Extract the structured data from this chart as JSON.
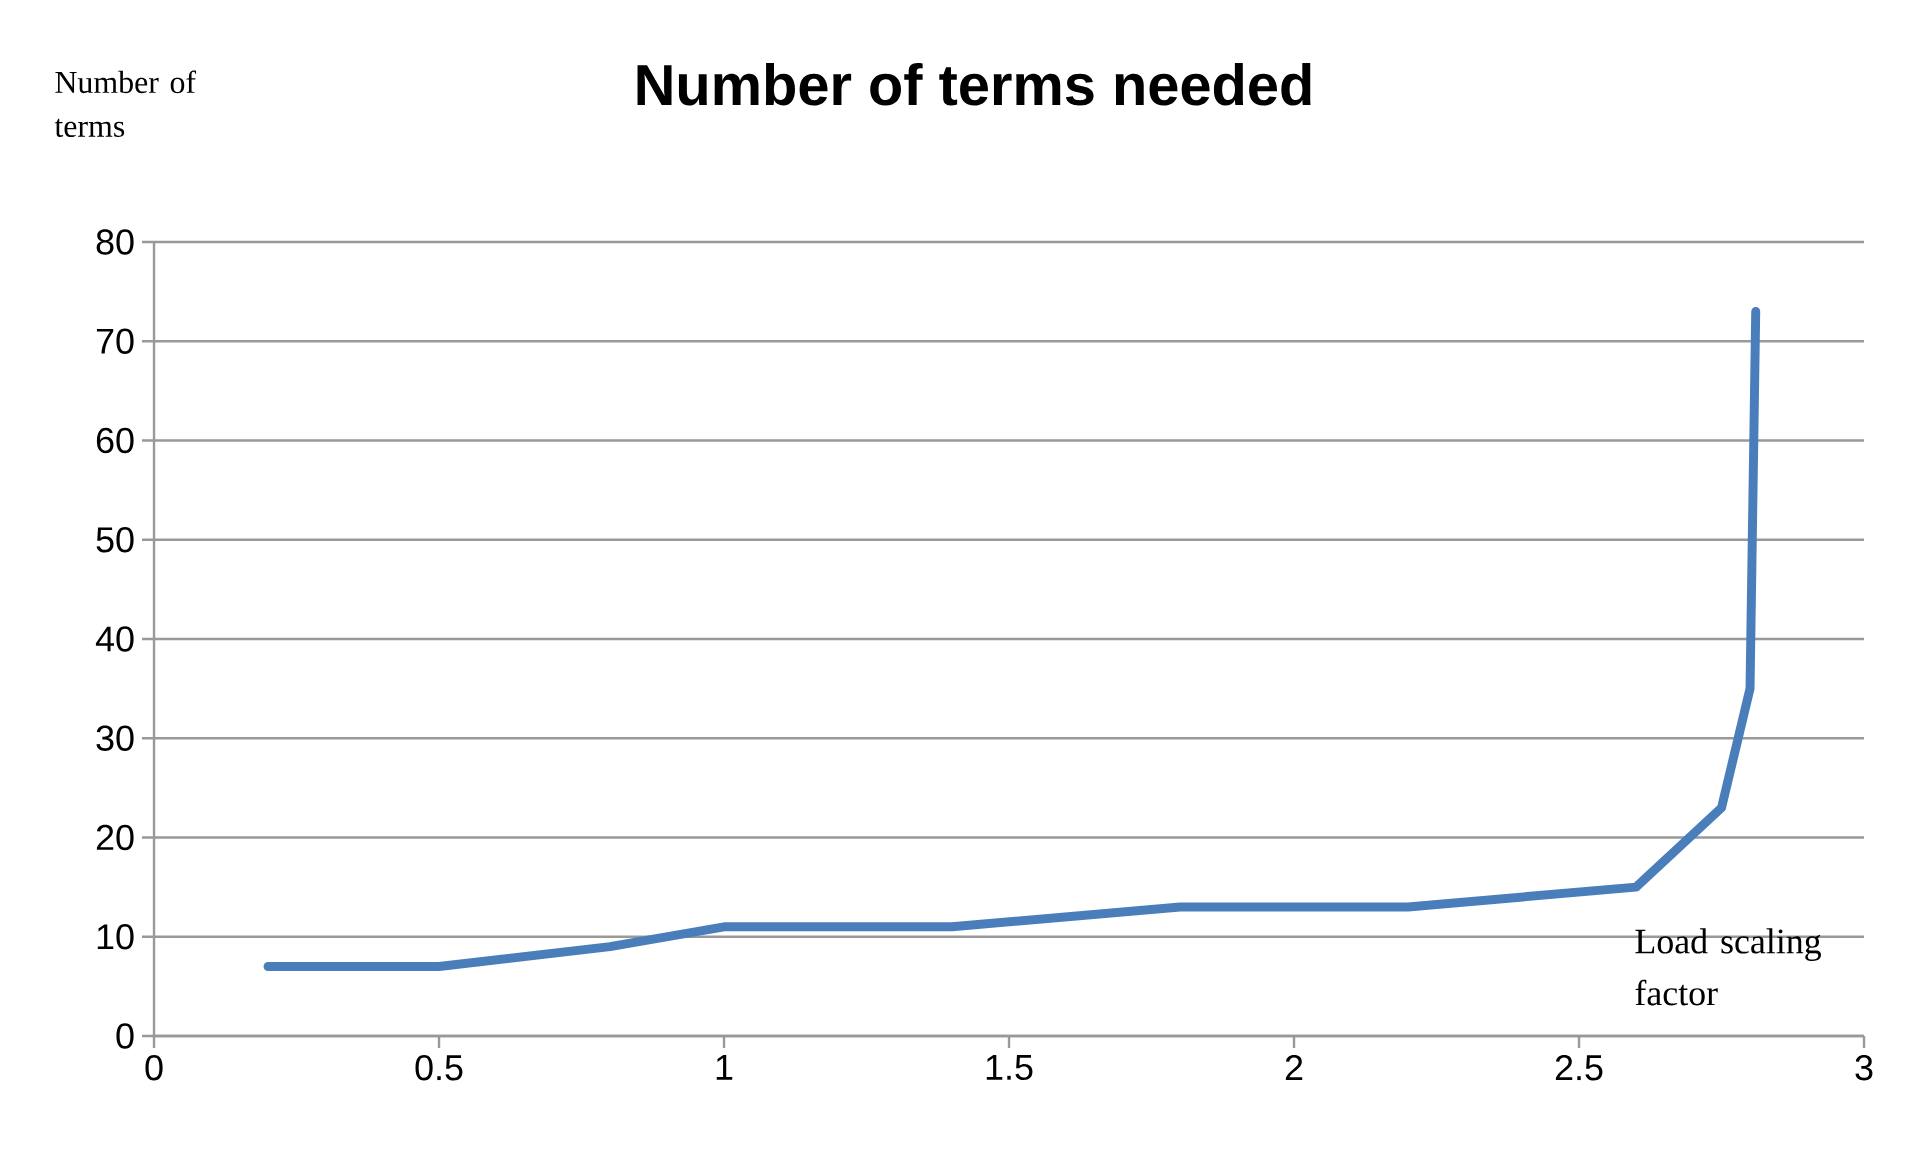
{
  "chart_data": {
    "type": "line",
    "title": "Number of terms needed",
    "xlabel": "Load scaling factor",
    "ylabel": "Number of terms",
    "x": [
      0.2,
      0.5,
      0.8,
      1.0,
      1.4,
      1.8,
      2.2,
      2.6,
      2.75,
      2.8,
      2.81
    ],
    "values": [
      7,
      7,
      9,
      11,
      11,
      13,
      13,
      15,
      23,
      35,
      73
    ],
    "color": "#4a7ebb",
    "xlim": [
      0,
      3
    ],
    "ylim": [
      0,
      80
    ],
    "xticks": [
      0,
      0.5,
      1,
      1.5,
      2,
      2.5,
      3
    ],
    "yticks": [
      0,
      10,
      20,
      30,
      40,
      50,
      60,
      70,
      80
    ],
    "grid": "y"
  }
}
